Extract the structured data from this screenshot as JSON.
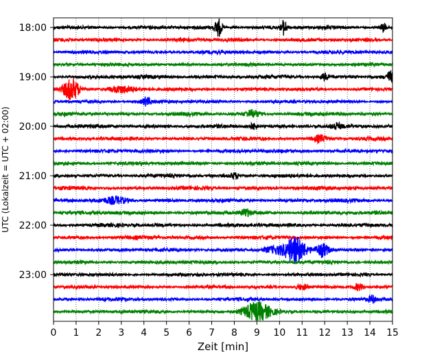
{
  "chart_data": {
    "type": "line",
    "title": "",
    "xlabel": "Zeit  [min]",
    "ylabel": "UTC (Lokalzeit = UTC + 02:00)",
    "xlim": [
      0,
      15
    ],
    "x_ticks": [
      "0",
      "1",
      "2",
      "3",
      "4",
      "5",
      "6",
      "7",
      "8",
      "9",
      "10",
      "11",
      "12",
      "13",
      "14",
      "15"
    ],
    "y_tick_labels": [
      "18:00",
      "19:00",
      "20:00",
      "21:00",
      "22:00",
      "23:00"
    ],
    "grid": "vertical dotted",
    "colors": [
      "#000000",
      "#ff0000",
      "#0000ff",
      "#008000"
    ],
    "traces_per_hour": 4,
    "trace_start_times": [
      "18:00",
      "18:15",
      "18:30",
      "18:45",
      "19:00",
      "19:15",
      "19:30",
      "19:45",
      "20:00",
      "20:15",
      "20:30",
      "20:45",
      "21:00",
      "21:15",
      "21:30",
      "21:45",
      "22:00",
      "22:15",
      "22:30",
      "22:45",
      "23:00",
      "23:15",
      "23:30",
      "23:45"
    ],
    "events": [
      {
        "trace": 0,
        "t": 7.3,
        "amp": 2.2,
        "width": 0.15
      },
      {
        "trace": 0,
        "t": 10.2,
        "amp": 1.8,
        "width": 0.12
      },
      {
        "trace": 0,
        "t": 14.6,
        "amp": 1.0,
        "width": 0.12
      },
      {
        "trace": 4,
        "t": 14.9,
        "amp": 1.2,
        "width": 0.15
      },
      {
        "trace": 4,
        "t": 12.0,
        "amp": 0.8,
        "width": 0.15
      },
      {
        "trace": 5,
        "t": 0.8,
        "amp": 2.6,
        "width": 0.35
      },
      {
        "trace": 5,
        "t": 3.0,
        "amp": 0.7,
        "width": 0.6
      },
      {
        "trace": 6,
        "t": 4.1,
        "amp": 0.9,
        "width": 0.2
      },
      {
        "trace": 7,
        "t": 8.8,
        "amp": 0.9,
        "width": 0.3
      },
      {
        "trace": 8,
        "t": 8.8,
        "amp": 0.7,
        "width": 0.2
      },
      {
        "trace": 8,
        "t": 12.5,
        "amp": 0.7,
        "width": 0.2
      },
      {
        "trace": 9,
        "t": 11.8,
        "amp": 0.8,
        "width": 0.3
      },
      {
        "trace": 12,
        "t": 8.0,
        "amp": 0.7,
        "width": 0.2
      },
      {
        "trace": 14,
        "t": 2.8,
        "amp": 0.8,
        "width": 0.5
      },
      {
        "trace": 15,
        "t": 8.5,
        "amp": 0.8,
        "width": 0.2
      },
      {
        "trace": 18,
        "t": 10.7,
        "amp": 3.0,
        "width": 0.45
      },
      {
        "trace": 18,
        "t": 11.9,
        "amp": 1.6,
        "width": 0.3
      },
      {
        "trace": 18,
        "t": 9.8,
        "amp": 0.8,
        "width": 0.5
      },
      {
        "trace": 21,
        "t": 11.0,
        "amp": 0.7,
        "width": 0.3
      },
      {
        "trace": 21,
        "t": 13.5,
        "amp": 0.8,
        "width": 0.2
      },
      {
        "trace": 22,
        "t": 14.1,
        "amp": 0.8,
        "width": 0.15
      },
      {
        "trace": 23,
        "t": 9.0,
        "amp": 2.2,
        "width": 0.6
      }
    ]
  }
}
